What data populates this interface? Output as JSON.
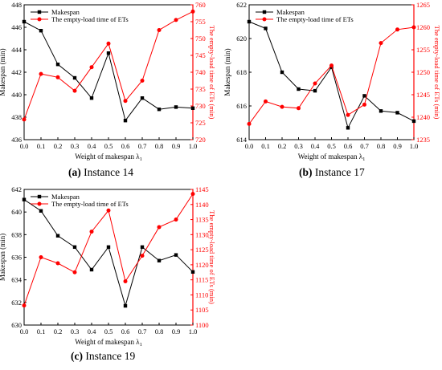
{
  "chart_data": [
    {
      "type": "line",
      "x": [
        0.0,
        0.1,
        0.2,
        0.3,
        0.4,
        0.5,
        0.6,
        0.7,
        0.8,
        0.9,
        1.0
      ],
      "x_tick_labels": [
        "0.0",
        "0.1",
        "0.2",
        "0.3",
        "0.4",
        "0.5",
        "0.6",
        "0.7",
        "0.8",
        "0.9",
        "1.0"
      ],
      "xlim": [
        0,
        1
      ],
      "xlabel": "Weight of makespan λ",
      "xlabel_sub": "1",
      "ylabel": "Makespan (min)",
      "y2label": "The empty-load time of ETs (min)",
      "ylim": [
        436,
        448
      ],
      "y_ticks": [
        436,
        438,
        440,
        442,
        444,
        446,
        448
      ],
      "y2lim": [
        720,
        760
      ],
      "y2_ticks": [
        720,
        725,
        730,
        735,
        740,
        745,
        750,
        755,
        760
      ],
      "grid": false,
      "legend_position": "top-left",
      "caption_letter": "(a)",
      "caption_text": "Instance 14",
      "series": [
        {
          "name": "Makespan",
          "axis": "left",
          "color": "#000000",
          "marker": "square",
          "values": [
            446.5,
            445.7,
            442.7,
            441.5,
            439.7,
            443.7,
            437.7,
            439.7,
            438.7,
            438.9,
            438.8
          ]
        },
        {
          "name": "The empty-load time of  ETs",
          "axis": "right",
          "color": "#ff0000",
          "marker": "circle",
          "values": [
            726,
            739.5,
            738.5,
            734.5,
            741.5,
            748.5,
            731.5,
            737.5,
            752.5,
            755.5,
            758
          ]
        }
      ]
    },
    {
      "type": "line",
      "x": [
        0.0,
        0.1,
        0.2,
        0.3,
        0.4,
        0.5,
        0.6,
        0.7,
        0.8,
        0.9,
        1.0
      ],
      "x_tick_labels": [
        "0.0",
        "0.1",
        "0.2",
        "0.3",
        "0.4",
        "0.5",
        "0.6",
        "0.7",
        "0.8",
        "0.9",
        "1.0"
      ],
      "xlim": [
        0,
        1
      ],
      "xlabel": "Weight of makespan λ",
      "xlabel_sub": "1",
      "ylabel": "Makespan (min)",
      "y2label": "The empty-load time of ETs (min)",
      "ylim": [
        614,
        622
      ],
      "y_ticks": [
        614,
        616,
        618,
        620,
        622
      ],
      "y2lim": [
        1235,
        1265
      ],
      "y2_ticks": [
        1235,
        1240,
        1245,
        1250,
        1255,
        1260,
        1265
      ],
      "grid": false,
      "legend_position": "top-left",
      "caption_letter": "(b)",
      "caption_text": "Instance 17",
      "series": [
        {
          "name": "Makespan",
          "axis": "left",
          "color": "#000000",
          "marker": "square",
          "values": [
            621.0,
            620.6,
            618.0,
            617.0,
            616.9,
            618.3,
            614.7,
            616.6,
            615.7,
            615.6,
            615.1
          ]
        },
        {
          "name": "The empty-load time of  ETs",
          "axis": "right",
          "color": "#ff0000",
          "marker": "circle",
          "values": [
            1238.5,
            1243.5,
            1242.3,
            1242.0,
            1247.5,
            1251.5,
            1240.5,
            1242.8,
            1256.5,
            1259.5,
            1260
          ]
        }
      ]
    },
    {
      "type": "line",
      "x": [
        0.0,
        0.1,
        0.2,
        0.3,
        0.4,
        0.5,
        0.6,
        0.7,
        0.8,
        0.9,
        1.0
      ],
      "x_tick_labels": [
        "0.0",
        "0.1",
        "0.2",
        "0.3",
        "0.4",
        "0.5",
        "0.6",
        "0.7",
        "0.8",
        "0.9",
        "1.0"
      ],
      "xlim": [
        0,
        1
      ],
      "xlabel": "Weight of makespan λ",
      "xlabel_sub": "1",
      "ylabel": "Makespan (min)",
      "y2label": "The empty-load time of ETs (min)",
      "ylim": [
        630,
        642
      ],
      "y_ticks": [
        630,
        632,
        634,
        636,
        638,
        640,
        642
      ],
      "y2lim": [
        1100,
        1145
      ],
      "y2_ticks": [
        1100,
        1105,
        1110,
        1115,
        1120,
        1125,
        1130,
        1135,
        1140,
        1145
      ],
      "grid": false,
      "legend_position": "top-left",
      "caption_letter": "(c)",
      "caption_text": "Instance 19",
      "series": [
        {
          "name": "Makespan",
          "axis": "left",
          "color": "#000000",
          "marker": "square",
          "values": [
            641.1,
            640.1,
            637.9,
            636.9,
            634.9,
            636.9,
            631.7,
            636.9,
            635.7,
            636.2,
            634.7
          ]
        },
        {
          "name": "The empty-load time of  ETs",
          "axis": "right",
          "color": "#ff0000",
          "marker": "circle",
          "values": [
            1106.5,
            1122.5,
            1120.5,
            1117.5,
            1131,
            1138,
            1114.5,
            1123,
            1132.5,
            1135,
            1143.5
          ]
        }
      ]
    }
  ]
}
